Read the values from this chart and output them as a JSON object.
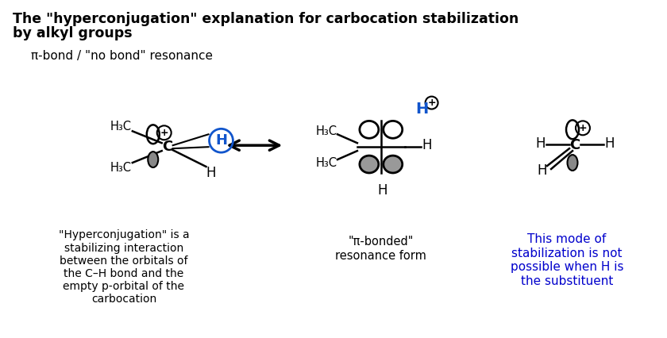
{
  "bg_color": "#ffffff",
  "title_line1": "The \"hyperconjugation\" explanation for carbocation stabilization",
  "title_line2": "by alkyl groups",
  "subtitle": "π-bond / \"no bond\" resonance",
  "caption_left": "\"Hyperconjugation\" is a\nstabilizing interaction\nbetween the orbitals of\nthe C–H bond and the\nempty p-orbital of the\ncarbocation",
  "caption_center": "\"π-bonded\"\nresonance form",
  "caption_right": "This mode of\nstabilization is not\npossible when H is\nthe substituent",
  "caption_right_color": "#0000cc",
  "figsize": [
    8.4,
    4.26
  ],
  "dpi": 100
}
